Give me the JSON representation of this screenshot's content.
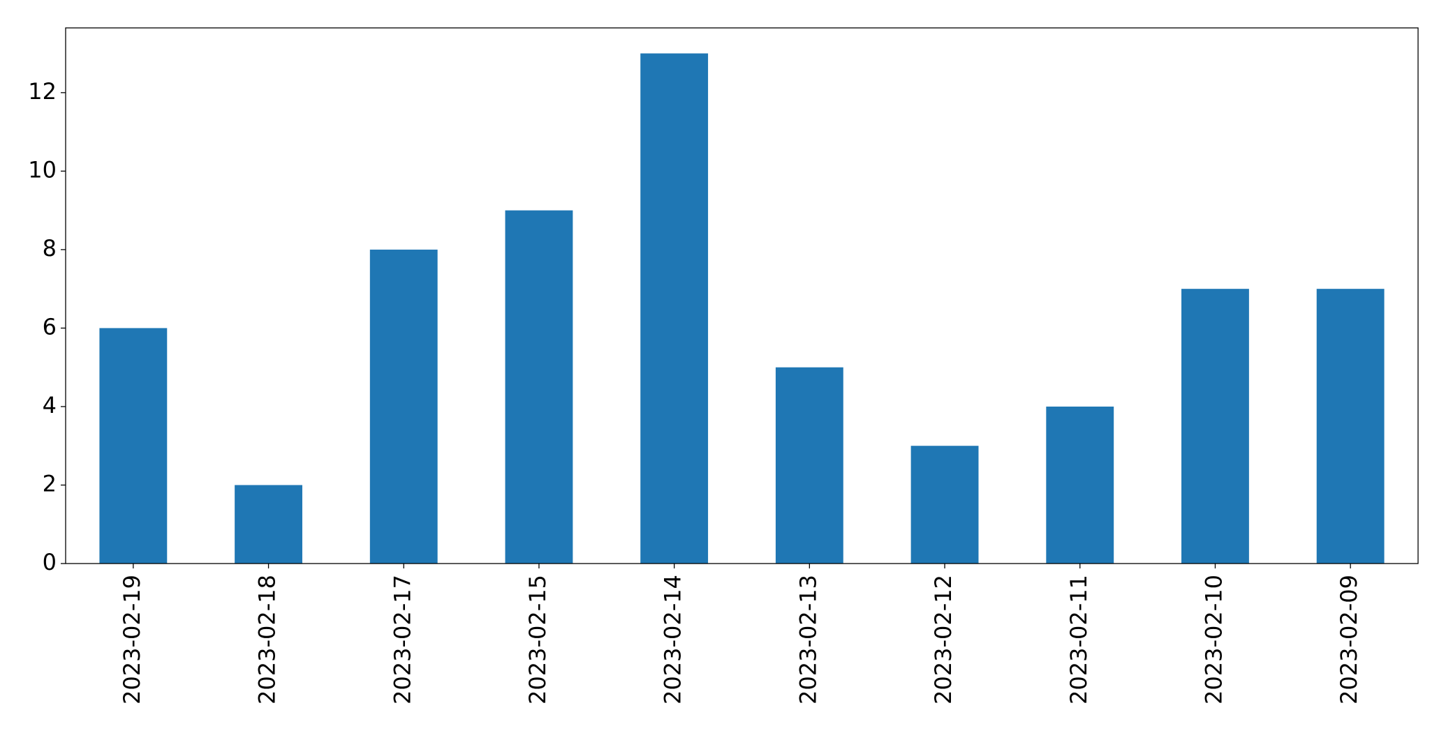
{
  "chart_data": {
    "type": "bar",
    "categories": [
      "2023-02-19",
      "2023-02-18",
      "2023-02-17",
      "2023-02-15",
      "2023-02-14",
      "2023-02-13",
      "2023-02-12",
      "2023-02-11",
      "2023-02-10",
      "2023-02-09"
    ],
    "values": [
      6,
      2,
      8,
      9,
      13,
      5,
      3,
      4,
      7,
      7
    ],
    "color": "#1f77b4",
    "ylim": [
      0,
      13.65
    ],
    "yticks": [
      0,
      2,
      4,
      6,
      8,
      10,
      12
    ],
    "grid": false
  }
}
